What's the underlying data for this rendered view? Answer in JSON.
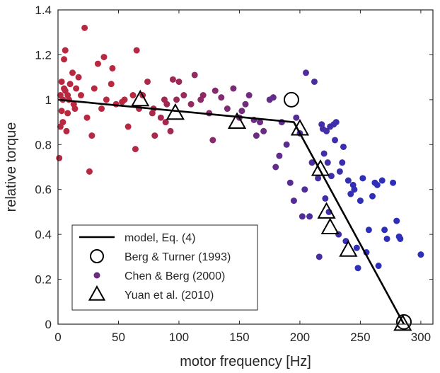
{
  "chart_data": {
    "type": "scatter",
    "xlabel": "motor frequency [Hz]",
    "ylabel": "relative torque",
    "xlim": [
      0,
      310
    ],
    "ylim": [
      0,
      1.4
    ],
    "xticks": [
      0,
      50,
      100,
      150,
      200,
      250,
      300
    ],
    "yticks": [
      0,
      0.2,
      0.4,
      0.6,
      0.8,
      1,
      1.2,
      1.4
    ],
    "xtick_labels": [
      "0",
      "50",
      "100",
      "150",
      "200",
      "250",
      "300"
    ],
    "ytick_labels": [
      "0",
      "0.2",
      "0.4",
      "0.6",
      "0.8",
      "1",
      "1.2",
      "1.4"
    ],
    "grid": false,
    "legend_position": "bottom-left",
    "legend": [
      "model, Eq. (4)",
      "Berg & Turner (1993)",
      "Chen & Berg (2000)",
      "Yuan et al. (2010)"
    ],
    "series": [
      {
        "name": "model, Eq. (4)",
        "type": "line",
        "color": "#000000",
        "x": [
          0,
          195,
          286
        ],
        "y": [
          1.0,
          0.9,
          0.0
        ]
      },
      {
        "name": "Berg & Turner (1993)",
        "type": "scatter",
        "marker": "open-circle",
        "color": "#000000",
        "x": [
          193,
          286
        ],
        "y": [
          1.0,
          0.01
        ]
      },
      {
        "name": "Chen & Berg (2000)",
        "type": "scatter",
        "marker": "filled-circle",
        "color_start": "#b82840",
        "color_end": "#2e2fb8",
        "x": [
          1,
          2,
          2,
          3,
          3,
          4,
          4,
          5,
          5,
          6,
          6,
          7,
          8,
          8,
          9,
          10,
          12,
          13,
          14,
          15,
          17,
          19,
          22,
          24,
          26,
          28,
          30,
          33,
          36,
          38,
          40,
          44,
          45,
          48,
          53,
          55,
          58,
          62,
          64,
          65,
          67,
          70,
          74,
          78,
          79,
          80,
          85,
          88,
          89,
          90,
          93,
          95,
          98,
          100,
          104,
          110,
          113,
          118,
          120,
          125,
          128,
          130,
          135,
          140,
          145,
          150,
          152,
          155,
          158,
          162,
          164,
          167,
          170,
          175,
          178,
          180,
          183,
          185,
          189,
          192,
          195,
          197,
          200,
          202,
          204,
          205,
          208,
          210,
          212,
          215,
          216,
          218,
          219,
          220,
          221,
          222,
          223,
          224,
          225,
          226,
          228,
          229,
          230,
          232,
          233,
          235,
          236,
          238,
          240,
          242,
          244,
          245,
          247,
          248,
          250,
          252,
          255,
          257,
          260,
          262,
          264,
          265,
          268,
          270,
          272,
          277,
          280,
          282,
          283,
          300
        ],
        "y": [
          0.74,
          1.02,
          0.88,
          0.95,
          1.08,
          0.9,
          1.0,
          1.18,
          1.05,
          1.22,
          1.04,
          0.86,
          0.94,
          1.02,
          1.0,
          1.07,
          1.12,
          0.98,
          0.96,
          1.05,
          1.1,
          1.02,
          1.32,
          0.92,
          0.68,
          0.84,
          1.05,
          1.16,
          0.96,
          1.19,
          1.0,
          1.07,
          1.14,
          0.98,
          0.99,
          1.0,
          0.88,
          1.02,
          0.78,
          1.22,
          0.96,
          1.02,
          1.08,
          0.94,
          0.96,
          0.84,
          0.92,
          1.0,
          0.9,
          0.98,
          0.86,
          1.09,
          1.0,
          1.08,
          1.02,
          0.98,
          1.11,
          1.0,
          1.02,
          0.94,
          0.82,
          1.04,
          1.01,
          0.96,
          1.05,
          0.92,
          0.95,
          0.98,
          1.02,
          0.91,
          0.84,
          0.9,
          0.86,
          1.0,
          1.01,
          0.7,
          0.75,
          0.9,
          0.8,
          0.63,
          0.55,
          0.92,
          0.85,
          0.48,
          0.6,
          1.12,
          0.48,
          0.72,
          1.08,
          0.65,
          0.3,
          0.89,
          0.87,
          0.76,
          0.56,
          0.86,
          0.72,
          0.5,
          0.88,
          0.66,
          0.89,
          0.82,
          0.9,
          0.4,
          0.68,
          0.72,
          0.79,
          0.37,
          0.64,
          0.58,
          0.62,
          0.6,
          0.34,
          0.25,
          0.55,
          0.65,
          0.32,
          0.42,
          0.57,
          0.63,
          0.62,
          0.26,
          0.64,
          0.42,
          0.38,
          0.63,
          0.46,
          0.39,
          0.38,
          0.31
        ]
      },
      {
        "name": "Yuan et al. (2010)",
        "type": "scatter",
        "marker": "open-triangle",
        "color": "#000000",
        "x": [
          68,
          97,
          148,
          200,
          217,
          222,
          225,
          240,
          285
        ],
        "y": [
          1.0,
          0.94,
          0.9,
          0.87,
          0.69,
          0.5,
          0.43,
          0.33,
          0.0
        ]
      }
    ]
  }
}
